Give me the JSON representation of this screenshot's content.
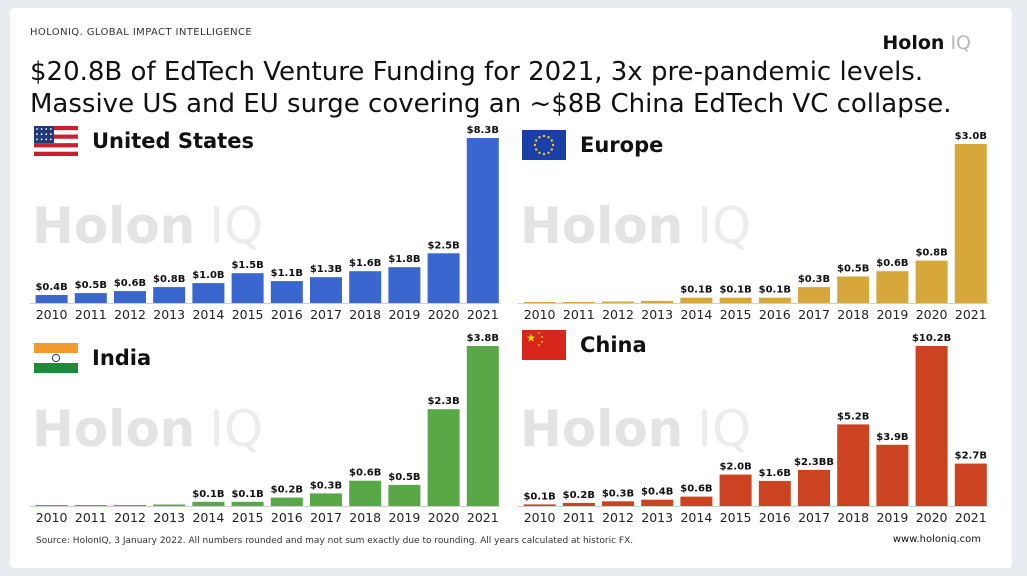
{
  "header": {
    "brand": "HOLONIQ. GLOBAL IMPACT INTELLIGENCE",
    "logo_main": "Holon",
    "logo_iq": "IQ",
    "title_line1": "$20.8B of EdTech Venture Funding for 2021, 3x pre-pandemic levels.",
    "title_line2": "Massive US and EU surge covering an ~$8B China EdTech VC collapse."
  },
  "watermark": {
    "main": "Holon",
    "iq": "IQ"
  },
  "footer": {
    "source": "Source: HolonIQ, 3 January 2022. All numbers rounded and may not sum exactly due to rounding. All years calculated at historic FX.",
    "url": "www.holoniq.com"
  },
  "chart_data": [
    {
      "type": "bar",
      "title": "United States",
      "flag_icon": "us-flag-icon",
      "color": "#3a66d0",
      "categories": [
        "2010",
        "2011",
        "2012",
        "2013",
        "2014",
        "2015",
        "2016",
        "2017",
        "2018",
        "2019",
        "2020",
        "2021"
      ],
      "values": [
        0.4,
        0.5,
        0.6,
        0.8,
        1.0,
        1.5,
        1.1,
        1.3,
        1.6,
        1.8,
        2.5,
        8.3
      ],
      "labels": [
        "$0.4B",
        "$0.5B",
        "$0.6B",
        "$0.8B",
        "$1.0B",
        "$1.5B",
        "$1.1B",
        "$1.3B",
        "$1.6B",
        "$1.8B",
        "$2.5B",
        "$8.3B"
      ],
      "ylim": [
        0,
        8.3
      ]
    },
    {
      "type": "bar",
      "title": "Europe",
      "flag_icon": "eu-flag-icon",
      "color": "#d6a73a",
      "categories": [
        "2010",
        "2011",
        "2012",
        "2013",
        "2014",
        "2015",
        "2016",
        "2017",
        "2018",
        "2019",
        "2020",
        "2021"
      ],
      "values": [
        0.0,
        0.0,
        0.02,
        0.04,
        0.1,
        0.1,
        0.1,
        0.3,
        0.5,
        0.6,
        0.8,
        3.0
      ],
      "labels": [
        "",
        "",
        "",
        "",
        "$0.1B",
        "$0.1B",
        "$0.1B",
        "$0.3B",
        "$0.5B",
        "$0.6B",
        "$0.8B",
        "$3.0B"
      ],
      "ylim": [
        0,
        3.0
      ]
    },
    {
      "type": "bar",
      "title": "India",
      "flag_icon": "india-flag-icon",
      "color": "#58a847",
      "categories": [
        "2010",
        "2011",
        "2012",
        "2013",
        "2014",
        "2015",
        "2016",
        "2017",
        "2018",
        "2019",
        "2020",
        "2021"
      ],
      "values": [
        0.0,
        0.0,
        0.0,
        0.01,
        0.1,
        0.1,
        0.2,
        0.3,
        0.6,
        0.5,
        2.3,
        3.8
      ],
      "labels": [
        "",
        "",
        "",
        "",
        "$0.1B",
        "$0.1B",
        "$0.2B",
        "$0.3B",
        "$0.6B",
        "$0.5B",
        "$2.3B",
        "$3.8B"
      ],
      "ylim": [
        0,
        3.8
      ]
    },
    {
      "type": "bar",
      "title": "China",
      "flag_icon": "china-flag-icon",
      "color": "#cc4322",
      "categories": [
        "2010",
        "2011",
        "2012",
        "2013",
        "2014",
        "2015",
        "2016",
        "2017",
        "2018",
        "2019",
        "2020",
        "2021"
      ],
      "values": [
        0.1,
        0.2,
        0.3,
        0.4,
        0.6,
        2.0,
        1.6,
        2.3,
        5.2,
        3.9,
        10.2,
        2.7
      ],
      "labels": [
        "$0.1B",
        "$0.2B",
        "$0.3B",
        "$0.4B",
        "$0.6B",
        "$2.0B",
        "$1.6B",
        "$2.3BB",
        "$5.2B",
        "$3.9B",
        "$10.2B",
        "$2.7B"
      ],
      "ylim": [
        0,
        10.2
      ]
    }
  ]
}
